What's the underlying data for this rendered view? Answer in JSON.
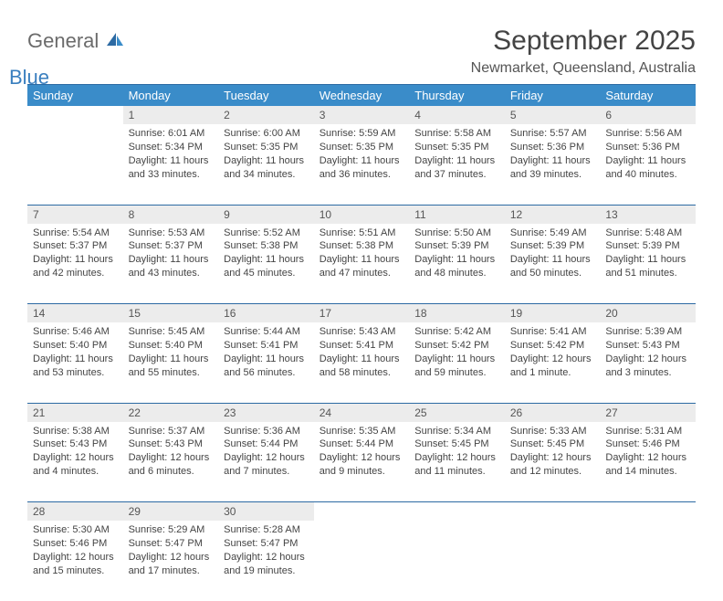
{
  "logo": {
    "text1": "General",
    "text2": "Blue",
    "icon_color": "#3a8cc9"
  },
  "title": "September 2025",
  "location": "Newmarket, Queensland, Australia",
  "header_bg": "#3a8cc9",
  "daynum_bg": "#ececec",
  "rule_color": "#2c6aa3",
  "columns": [
    "Sunday",
    "Monday",
    "Tuesday",
    "Wednesday",
    "Thursday",
    "Friday",
    "Saturday"
  ],
  "weeks": [
    [
      {
        "n": "",
        "lines": []
      },
      {
        "n": "1",
        "lines": [
          "Sunrise: 6:01 AM",
          "Sunset: 5:34 PM",
          "Daylight: 11 hours and 33 minutes."
        ]
      },
      {
        "n": "2",
        "lines": [
          "Sunrise: 6:00 AM",
          "Sunset: 5:35 PM",
          "Daylight: 11 hours and 34 minutes."
        ]
      },
      {
        "n": "3",
        "lines": [
          "Sunrise: 5:59 AM",
          "Sunset: 5:35 PM",
          "Daylight: 11 hours and 36 minutes."
        ]
      },
      {
        "n": "4",
        "lines": [
          "Sunrise: 5:58 AM",
          "Sunset: 5:35 PM",
          "Daylight: 11 hours and 37 minutes."
        ]
      },
      {
        "n": "5",
        "lines": [
          "Sunrise: 5:57 AM",
          "Sunset: 5:36 PM",
          "Daylight: 11 hours and 39 minutes."
        ]
      },
      {
        "n": "6",
        "lines": [
          "Sunrise: 5:56 AM",
          "Sunset: 5:36 PM",
          "Daylight: 11 hours and 40 minutes."
        ]
      }
    ],
    [
      {
        "n": "7",
        "lines": [
          "Sunrise: 5:54 AM",
          "Sunset: 5:37 PM",
          "Daylight: 11 hours and 42 minutes."
        ]
      },
      {
        "n": "8",
        "lines": [
          "Sunrise: 5:53 AM",
          "Sunset: 5:37 PM",
          "Daylight: 11 hours and 43 minutes."
        ]
      },
      {
        "n": "9",
        "lines": [
          "Sunrise: 5:52 AM",
          "Sunset: 5:38 PM",
          "Daylight: 11 hours and 45 minutes."
        ]
      },
      {
        "n": "10",
        "lines": [
          "Sunrise: 5:51 AM",
          "Sunset: 5:38 PM",
          "Daylight: 11 hours and 47 minutes."
        ]
      },
      {
        "n": "11",
        "lines": [
          "Sunrise: 5:50 AM",
          "Sunset: 5:39 PM",
          "Daylight: 11 hours and 48 minutes."
        ]
      },
      {
        "n": "12",
        "lines": [
          "Sunrise: 5:49 AM",
          "Sunset: 5:39 PM",
          "Daylight: 11 hours and 50 minutes."
        ]
      },
      {
        "n": "13",
        "lines": [
          "Sunrise: 5:48 AM",
          "Sunset: 5:39 PM",
          "Daylight: 11 hours and 51 minutes."
        ]
      }
    ],
    [
      {
        "n": "14",
        "lines": [
          "Sunrise: 5:46 AM",
          "Sunset: 5:40 PM",
          "Daylight: 11 hours and 53 minutes."
        ]
      },
      {
        "n": "15",
        "lines": [
          "Sunrise: 5:45 AM",
          "Sunset: 5:40 PM",
          "Daylight: 11 hours and 55 minutes."
        ]
      },
      {
        "n": "16",
        "lines": [
          "Sunrise: 5:44 AM",
          "Sunset: 5:41 PM",
          "Daylight: 11 hours and 56 minutes."
        ]
      },
      {
        "n": "17",
        "lines": [
          "Sunrise: 5:43 AM",
          "Sunset: 5:41 PM",
          "Daylight: 11 hours and 58 minutes."
        ]
      },
      {
        "n": "18",
        "lines": [
          "Sunrise: 5:42 AM",
          "Sunset: 5:42 PM",
          "Daylight: 11 hours and 59 minutes."
        ]
      },
      {
        "n": "19",
        "lines": [
          "Sunrise: 5:41 AM",
          "Sunset: 5:42 PM",
          "Daylight: 12 hours and 1 minute."
        ]
      },
      {
        "n": "20",
        "lines": [
          "Sunrise: 5:39 AM",
          "Sunset: 5:43 PM",
          "Daylight: 12 hours and 3 minutes."
        ]
      }
    ],
    [
      {
        "n": "21",
        "lines": [
          "Sunrise: 5:38 AM",
          "Sunset: 5:43 PM",
          "Daylight: 12 hours and 4 minutes."
        ]
      },
      {
        "n": "22",
        "lines": [
          "Sunrise: 5:37 AM",
          "Sunset: 5:43 PM",
          "Daylight: 12 hours and 6 minutes."
        ]
      },
      {
        "n": "23",
        "lines": [
          "Sunrise: 5:36 AM",
          "Sunset: 5:44 PM",
          "Daylight: 12 hours and 7 minutes."
        ]
      },
      {
        "n": "24",
        "lines": [
          "Sunrise: 5:35 AM",
          "Sunset: 5:44 PM",
          "Daylight: 12 hours and 9 minutes."
        ]
      },
      {
        "n": "25",
        "lines": [
          "Sunrise: 5:34 AM",
          "Sunset: 5:45 PM",
          "Daylight: 12 hours and 11 minutes."
        ]
      },
      {
        "n": "26",
        "lines": [
          "Sunrise: 5:33 AM",
          "Sunset: 5:45 PM",
          "Daylight: 12 hours and 12 minutes."
        ]
      },
      {
        "n": "27",
        "lines": [
          "Sunrise: 5:31 AM",
          "Sunset: 5:46 PM",
          "Daylight: 12 hours and 14 minutes."
        ]
      }
    ],
    [
      {
        "n": "28",
        "lines": [
          "Sunrise: 5:30 AM",
          "Sunset: 5:46 PM",
          "Daylight: 12 hours and 15 minutes."
        ]
      },
      {
        "n": "29",
        "lines": [
          "Sunrise: 5:29 AM",
          "Sunset: 5:47 PM",
          "Daylight: 12 hours and 17 minutes."
        ]
      },
      {
        "n": "30",
        "lines": [
          "Sunrise: 5:28 AM",
          "Sunset: 5:47 PM",
          "Daylight: 12 hours and 19 minutes."
        ]
      },
      {
        "n": "",
        "lines": []
      },
      {
        "n": "",
        "lines": []
      },
      {
        "n": "",
        "lines": []
      },
      {
        "n": "",
        "lines": []
      }
    ]
  ]
}
